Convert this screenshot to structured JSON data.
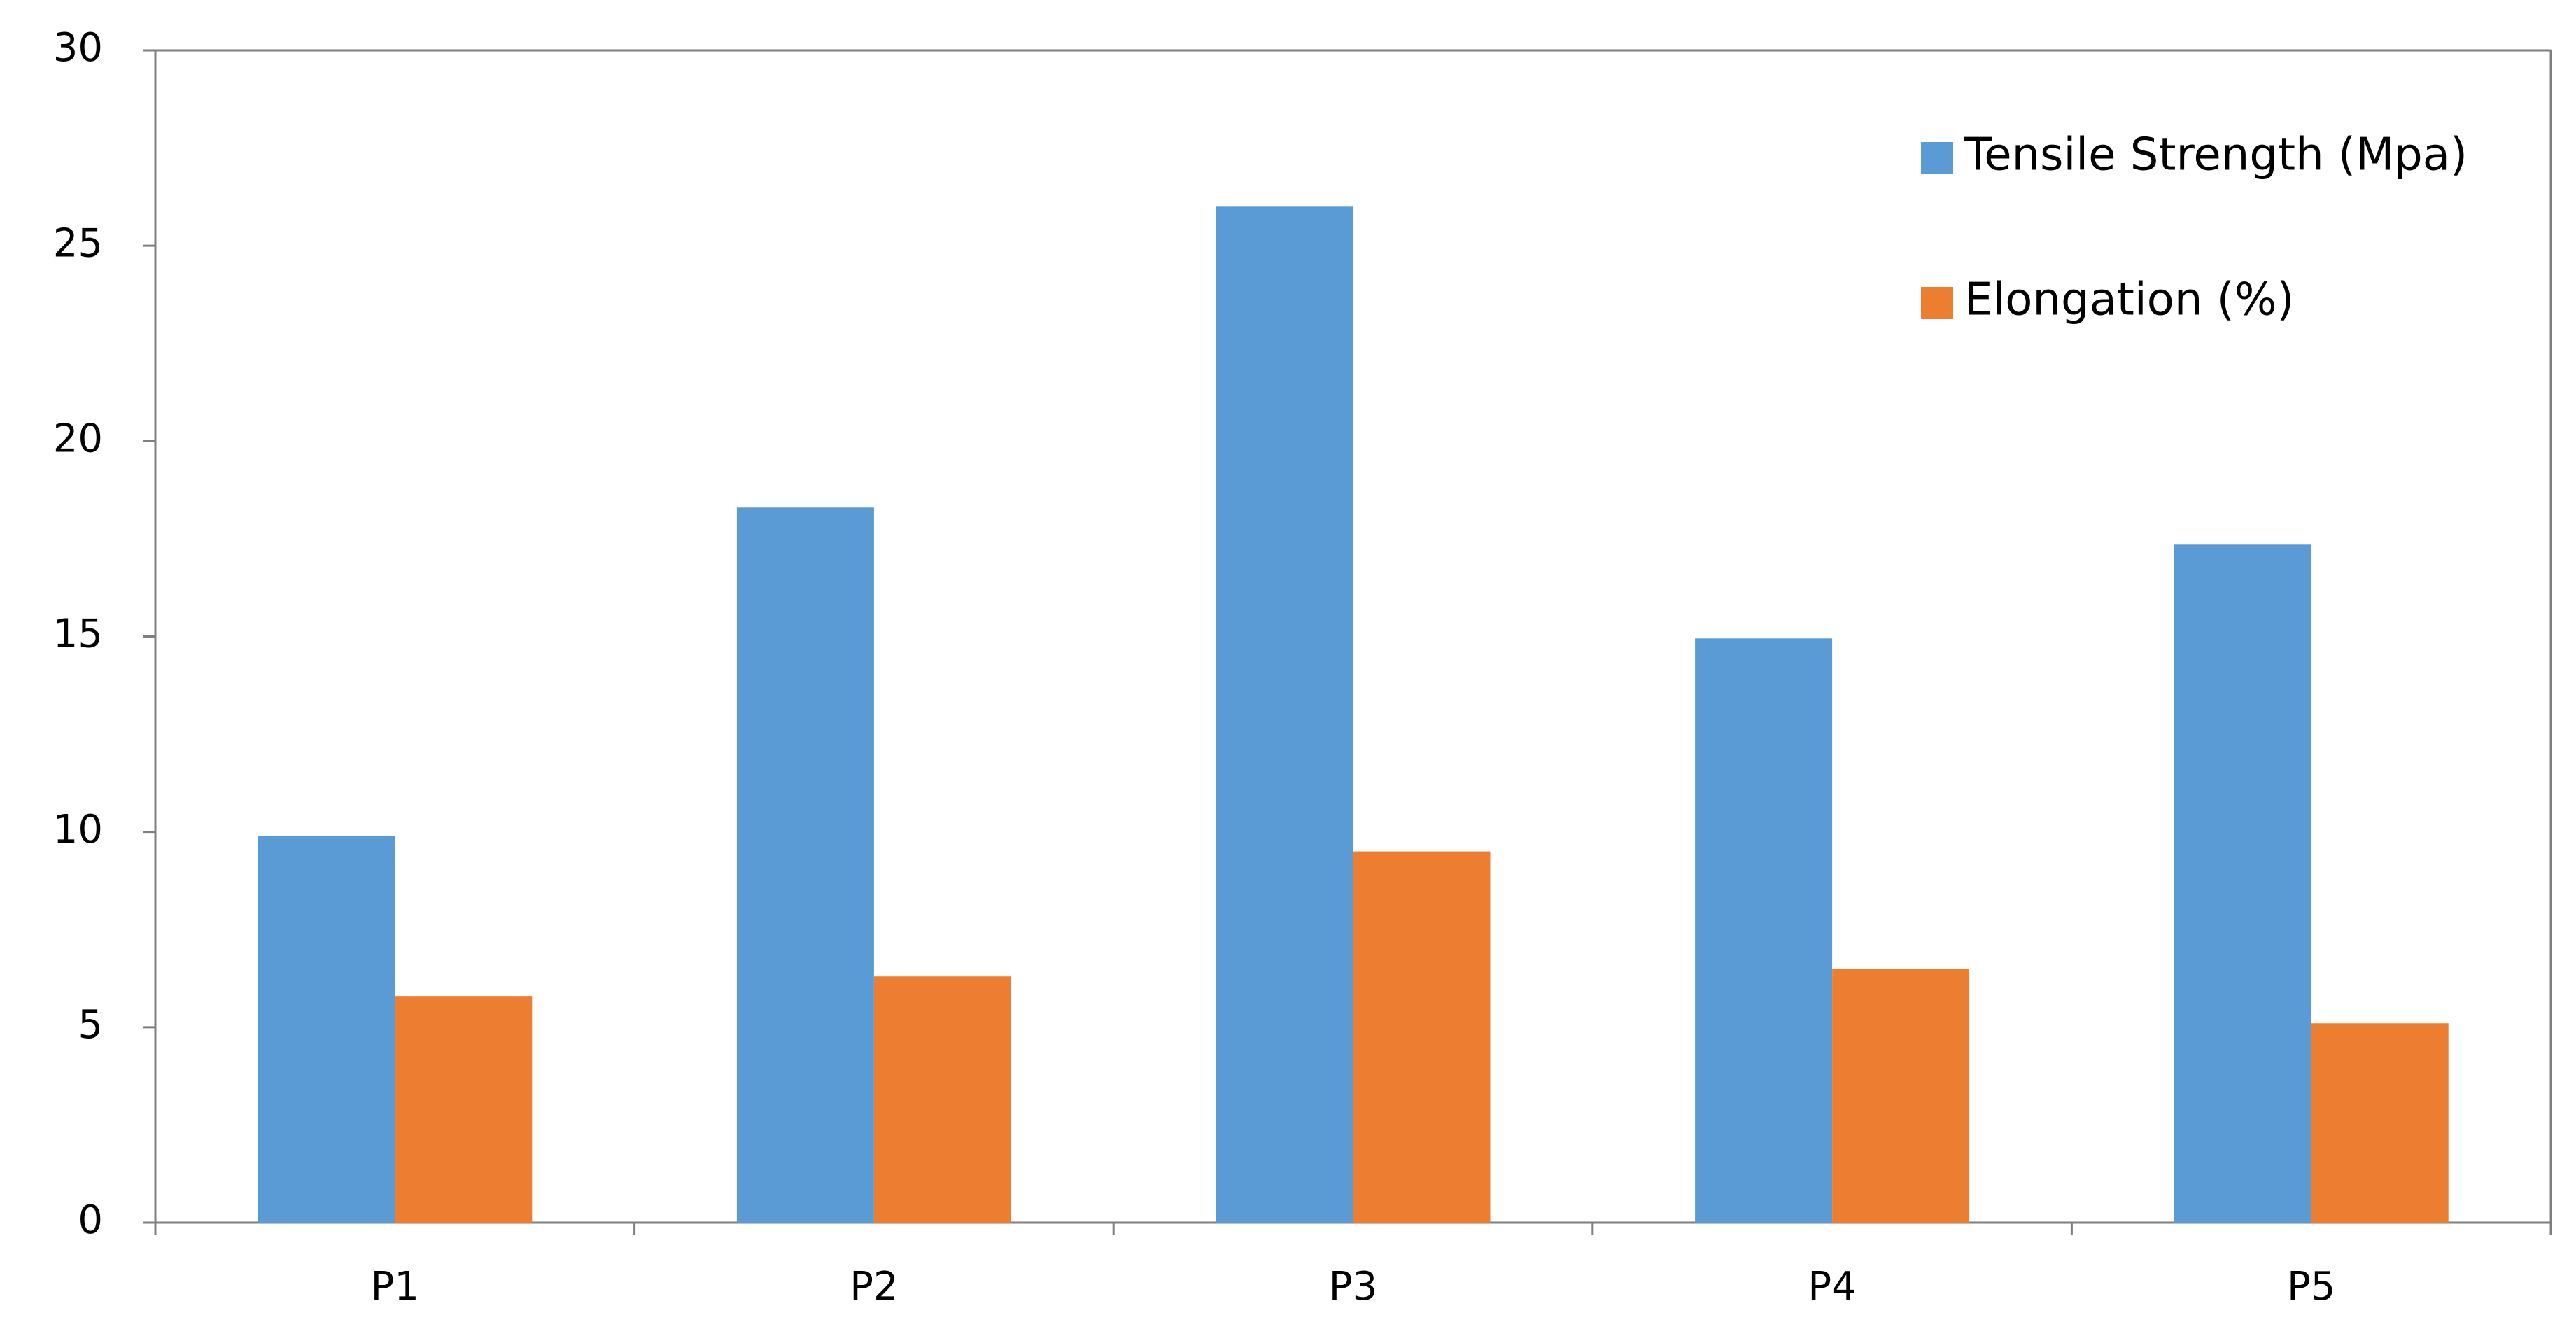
{
  "chart_data": {
    "type": "bar",
    "title": "",
    "xlabel": "",
    "ylabel": "",
    "categories": [
      "P1",
      "P2",
      "P3",
      "P4",
      "P5"
    ],
    "series": [
      {
        "name": "Tensile Strength (Mpa)",
        "color": "#5B9BD5",
        "values": [
          9.9,
          18.3,
          26.0,
          14.95,
          17.35
        ]
      },
      {
        "name": "Elongation (%)",
        "color": "#ED7D31",
        "values": [
          5.8,
          6.3,
          9.5,
          6.5,
          5.1
        ]
      }
    ],
    "ylim": [
      0,
      30
    ],
    "yticks": [
      {
        "value": 0,
        "label": "0"
      },
      {
        "value": 5,
        "label": "5"
      },
      {
        "value": 10,
        "label": "10"
      },
      {
        "value": 15,
        "label": "15"
      },
      {
        "value": 20,
        "label": "20"
      },
      {
        "value": 25,
        "label": "25"
      },
      {
        "value": 30,
        "label": "30"
      }
    ],
    "grid": false,
    "legend_position": "top-right",
    "axis_color": "#7F7F7F"
  }
}
